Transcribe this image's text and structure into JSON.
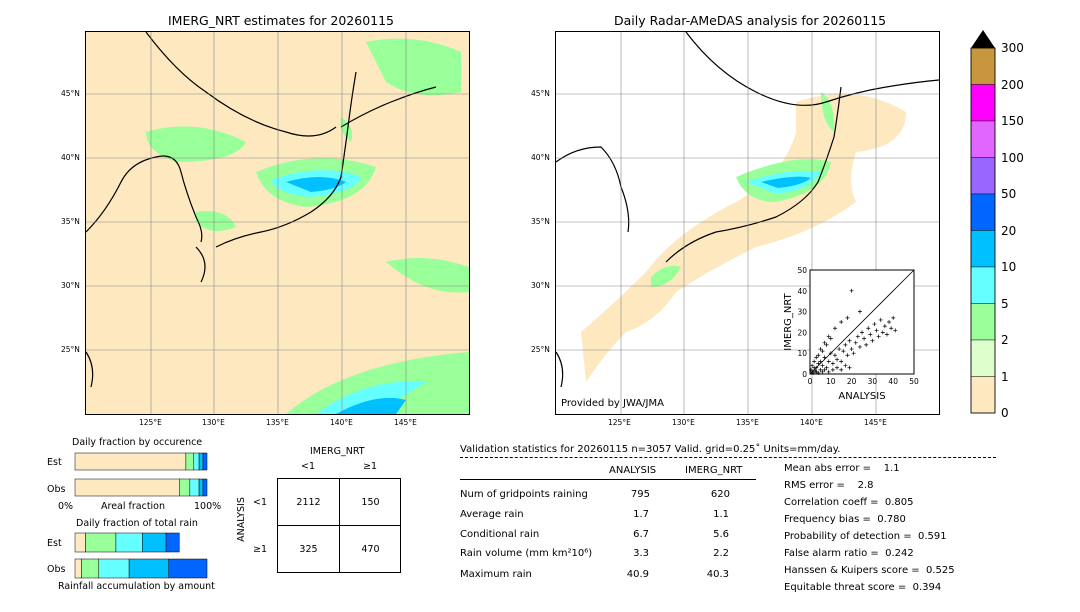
{
  "left_map": {
    "title": "IMERG_NRT estimates for 20260115",
    "lat_labels": [
      "45°N",
      "40°N",
      "35°N",
      "30°N",
      "25°N"
    ],
    "lon_labels": [
      "125°E",
      "130°E",
      "135°E",
      "140°E",
      "145°E"
    ]
  },
  "right_map": {
    "title": "Daily Radar-AMeDAS analysis for 20260115",
    "lat_labels": [
      "45°N",
      "40°N",
      "35°N",
      "30°N",
      "25°N"
    ],
    "lon_labels": [
      "125°E",
      "130°E",
      "135°E",
      "140°E",
      "145°E"
    ],
    "credit": "Provided by JWA/JMA"
  },
  "colorbar": {
    "labels": [
      "300",
      "200",
      "150",
      "100",
      "50",
      "20",
      "10",
      "5",
      "2",
      "1",
      "0"
    ],
    "colors": [
      "#c8963c",
      "#ff00ff",
      "#e066ff",
      "#9966ff",
      "#0066ff",
      "#00c0ff",
      "#66ffff",
      "#99ff99",
      "#ddffcc",
      "#fde8c0"
    ]
  },
  "occurrence": {
    "title": "Daily fraction by occurence",
    "row_labels": [
      "Est",
      "Obs"
    ],
    "axis_left": "0%",
    "axis_mid": "Areal fraction",
    "axis_right": "100%"
  },
  "total_rain": {
    "title": "Daily fraction of total rain",
    "row_labels": [
      "Est",
      "Obs"
    ],
    "footer": "Rainfall accumulation by amount"
  },
  "contingency": {
    "col_header": "IMERG_NRT",
    "col_labels": [
      "<1",
      "≥1"
    ],
    "row_header": "ANALYSIS",
    "row_labels": [
      "<1",
      "≥1"
    ],
    "cells": [
      [
        "2112",
        "150"
      ],
      [
        "325",
        "470"
      ]
    ]
  },
  "validation": {
    "header": "Validation statistics for 20260115  n=3057 Valid. grid=0.25˚ Units=mm/day.",
    "col_analysis": "ANALYSIS",
    "col_imerg": "IMERG_NRT",
    "rows": [
      {
        "label": "Num of gridpoints raining",
        "analysis": "795",
        "imerg": "620"
      },
      {
        "label": "Average rain",
        "analysis": "1.7",
        "imerg": "1.1"
      },
      {
        "label": "Conditional rain",
        "analysis": "6.7",
        "imerg": "5.6"
      },
      {
        "label": "Rain volume (mm km²10⁶)",
        "analysis": "3.3",
        "imerg": "2.2"
      },
      {
        "label": "Maximum rain",
        "analysis": "40.9",
        "imerg": "40.3"
      }
    ],
    "scores": [
      "Mean abs error =    1.1",
      "RMS error =    2.8",
      "Correlation coeff =  0.805",
      "Frequency bias =  0.780",
      "Probability of detection =  0.591",
      "False alarm ratio =  0.242",
      "Hanssen & Kuipers score =  0.525",
      "Equitable threat score =  0.394"
    ]
  },
  "chart_data": [
    {
      "type": "scatter",
      "xlabel": "ANALYSIS",
      "ylabel": "IMERG_NRT",
      "xlim": [
        0,
        50
      ],
      "ylim": [
        0,
        50
      ],
      "xticks": [
        "0",
        "10",
        "20",
        "30",
        "40",
        "50"
      ],
      "yticks": [
        "0",
        "10",
        "20",
        "30",
        "40",
        "50"
      ],
      "points": [
        [
          1,
          1
        ],
        [
          2,
          3
        ],
        [
          3,
          1
        ],
        [
          4,
          5
        ],
        [
          5,
          2
        ],
        [
          6,
          4
        ],
        [
          7,
          8
        ],
        [
          8,
          3
        ],
        [
          9,
          6
        ],
        [
          10,
          10
        ],
        [
          11,
          5
        ],
        [
          12,
          9
        ],
        [
          13,
          7
        ],
        [
          14,
          12
        ],
        [
          15,
          6
        ],
        [
          16,
          11
        ],
        [
          17,
          14
        ],
        [
          18,
          9
        ],
        [
          19,
          16
        ],
        [
          20,
          12
        ],
        [
          21,
          10
        ],
        [
          22,
          15
        ],
        [
          23,
          18
        ],
        [
          24,
          13
        ],
        [
          25,
          20
        ],
        [
          26,
          17
        ],
        [
          27,
          14
        ],
        [
          28,
          22
        ],
        [
          29,
          19
        ],
        [
          30,
          16
        ],
        [
          31,
          24
        ],
        [
          32,
          21
        ],
        [
          33,
          18
        ],
        [
          34,
          26
        ],
        [
          35,
          20
        ],
        [
          36,
          23
        ],
        [
          37,
          19
        ],
        [
          38,
          25
        ],
        [
          39,
          22
        ],
        [
          40,
          27
        ],
        [
          41,
          21
        ],
        [
          3,
          8
        ],
        [
          5,
          12
        ],
        [
          7,
          15
        ],
        [
          9,
          18
        ],
        [
          12,
          22
        ],
        [
          15,
          25
        ],
        [
          18,
          27
        ],
        [
          20,
          40
        ],
        [
          24,
          30
        ],
        [
          2,
          6
        ],
        [
          4,
          9
        ],
        [
          6,
          11
        ],
        [
          8,
          14
        ],
        [
          10,
          17
        ],
        [
          1,
          4
        ],
        [
          3,
          3
        ],
        [
          5,
          6
        ],
        [
          7,
          2
        ],
        [
          9,
          1
        ],
        [
          11,
          2
        ],
        [
          13,
          3
        ],
        [
          15,
          2
        ],
        [
          17,
          4
        ],
        [
          19,
          3
        ],
        [
          0.5,
          2
        ],
        [
          1.5,
          0.5
        ],
        [
          2.5,
          1.5
        ],
        [
          4,
          0.5
        ],
        [
          6,
          1
        ]
      ]
    },
    {
      "type": "bar",
      "title": "Daily fraction by occurence",
      "categories": [
        "Est",
        "Obs"
      ],
      "series": [
        {
          "values": [
            0.84,
            0.79
          ]
        },
        {
          "values": [
            0.06,
            0.08
          ]
        },
        {
          "values": [
            0.04,
            0.07
          ]
        },
        {
          "values": [
            0.03,
            0.03
          ]
        },
        {
          "values": [
            0.03,
            0.03
          ]
        }
      ]
    },
    {
      "type": "bar",
      "title": "Daily fraction of total rain",
      "categories": [
        "Est",
        "Obs"
      ],
      "series": [
        {
          "values": [
            0.08,
            0.05
          ]
        },
        {
          "values": [
            0.23,
            0.13
          ]
        },
        {
          "values": [
            0.2,
            0.23
          ]
        },
        {
          "values": [
            0.18,
            0.3
          ]
        },
        {
          "values": [
            0.1,
            0.29
          ]
        }
      ]
    }
  ]
}
